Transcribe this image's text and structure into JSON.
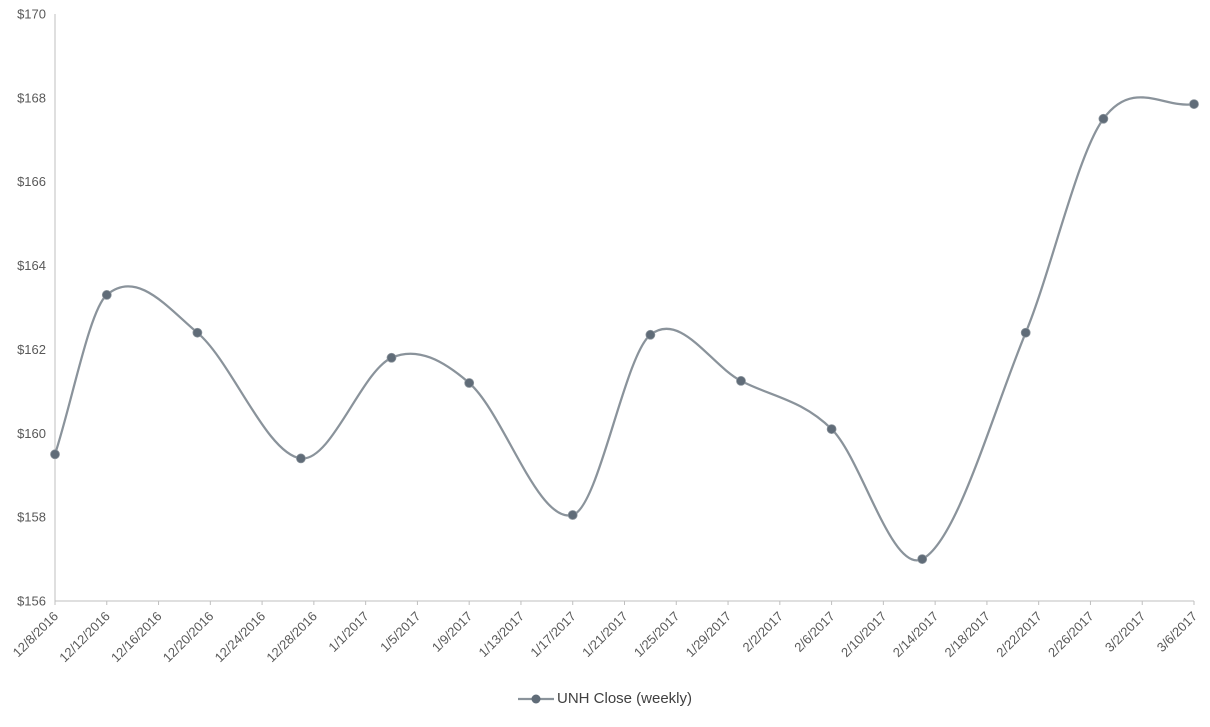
{
  "chart_data": {
    "type": "line",
    "smooth": true,
    "title": "",
    "xlabel": "",
    "ylabel": "",
    "legend": {
      "position": "bottom",
      "label": "UNH Close (weekly)"
    },
    "series": [
      {
        "name": "UNH Close (weekly)",
        "x": [
          "12/8/2016",
          "12/12/2016",
          "12/19/2016",
          "12/27/2016",
          "1/3/2017",
          "1/9/2017",
          "1/17/2017",
          "1/23/2017",
          "1/30/2017",
          "2/6/2017",
          "2/13/2017",
          "2/21/2017",
          "2/27/2017",
          "3/6/2017"
        ],
        "values": [
          159.5,
          163.3,
          162.4,
          159.4,
          161.8,
          161.2,
          158.05,
          162.35,
          161.25,
          160.1,
          157.0,
          162.4,
          167.5,
          167.85
        ]
      }
    ],
    "x_tick_labels": [
      "12/8/2016",
      "12/12/2016",
      "12/16/2016",
      "12/20/2016",
      "12/24/2016",
      "12/28/2016",
      "1/1/2017",
      "1/5/2017",
      "1/9/2017",
      "1/13/2017",
      "1/17/2017",
      "1/21/2017",
      "1/25/2017",
      "1/29/2017",
      "2/2/2017",
      "2/6/2017",
      "2/10/2017",
      "2/14/2017",
      "2/18/2017",
      "2/22/2017",
      "2/26/2017",
      "3/2/2017",
      "3/6/2017"
    ],
    "y_ticks": [
      156,
      158,
      160,
      162,
      164,
      166,
      168,
      170
    ],
    "y_tick_labels": [
      "$156",
      "$158",
      "$160",
      "$162",
      "$164",
      "$166",
      "$168",
      "$170"
    ],
    "ylim": [
      156,
      170
    ],
    "grid": false,
    "colors": {
      "line": "#8a939b",
      "marker": "#606c78",
      "axis": "#bfbfbf",
      "tick_label": "#595959",
      "legend_text": "#404040"
    }
  }
}
